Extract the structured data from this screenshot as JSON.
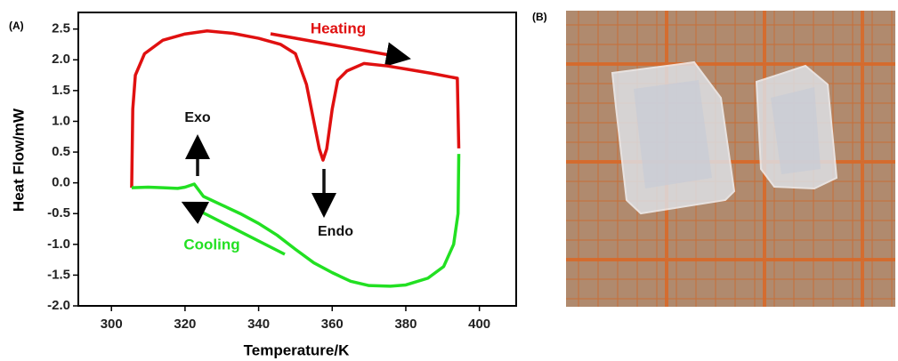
{
  "chart_data": {
    "type": "line",
    "panel_label": "(A)",
    "photo_label": "(B)",
    "x_label": "Temperature/K",
    "y_label": "Heat Flow/mW",
    "annotations": [
      "Heating",
      "Cooling",
      "Exo",
      "Endo"
    ],
    "xlim": [
      291,
      410
    ],
    "ylim": [
      -2.0,
      2.77
    ],
    "xticks": [
      300,
      320,
      340,
      360,
      380,
      400
    ],
    "yticks": [
      {
        "value": -2.0,
        "label": "-2.0"
      },
      -1.5,
      {
        "value": -1.0,
        "label": "-1.0"
      },
      -0.5,
      {
        "value": 0.0,
        "label": "0.0"
      },
      0.5,
      {
        "value": 1.0,
        "label": "1.0"
      },
      1.5,
      {
        "value": 2.0,
        "label": "2.0"
      },
      2.5
    ],
    "series": [
      {
        "color": "#e01010",
        "x": [
          305.5,
          305.8,
          306.5,
          309,
          314,
          320,
          326,
          333,
          340,
          346,
          350,
          353,
          355,
          356.5,
          357.5,
          358.5,
          360,
          361.5,
          364,
          368.6,
          375,
          380,
          387,
          394,
          394.4
        ],
        "y": [
          -0.08,
          1.2,
          1.75,
          2.1,
          2.32,
          2.42,
          2.47,
          2.43,
          2.35,
          2.25,
          2.1,
          1.6,
          1.0,
          0.55,
          0.37,
          0.55,
          1.2,
          1.67,
          1.82,
          1.94,
          1.9,
          1.85,
          1.78,
          1.7,
          0.56
        ]
      },
      {
        "color": "#22e022",
        "x": [
          394.4,
          394.2,
          393,
          390.3,
          386,
          380,
          375.8,
          370,
          365,
          360,
          355,
          350,
          345,
          340,
          335,
          330,
          325,
          322.5,
          320,
          318,
          314,
          310,
          305.5
        ],
        "y": [
          0.47,
          -0.5,
          -1.0,
          -1.36,
          -1.55,
          -1.66,
          -1.68,
          -1.67,
          -1.6,
          -1.46,
          -1.3,
          -1.08,
          -0.85,
          -0.66,
          -0.5,
          -0.36,
          -0.22,
          -0.02,
          -0.07,
          -0.09,
          -0.08,
          -0.07,
          -0.08
        ]
      }
    ]
  }
}
